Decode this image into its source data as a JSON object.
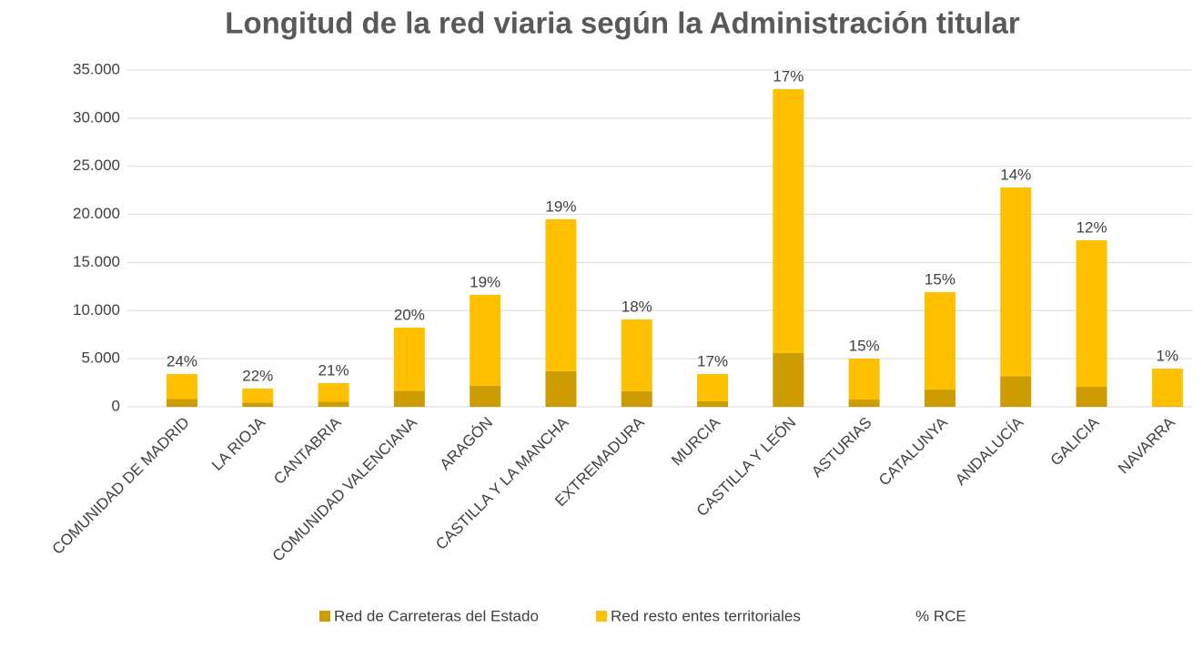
{
  "chart_data": {
    "type": "stacked_bar",
    "title": "Longitud de la red viaria según la Administración titular",
    "categories": [
      "COMUNIDAD DE MADRID",
      "LA RIOJA",
      "CANTABRIA",
      "COMUNIDAD VALENCIANA",
      "ARAGÓN",
      "CASTILLA Y LA MANCHA",
      "EXTREMADURA",
      "MURCIA",
      "CASTILLA Y LEÓN",
      "ASTURIAS",
      "CATALUNYA",
      "ANDALUCÍA",
      "GALICIA",
      "NAVARRA"
    ],
    "series": [
      {
        "name": "Red de Carreteras del Estado",
        "color": "#cc9c00",
        "values": [
          800,
          420,
          520,
          1650,
          2210,
          3700,
          1630,
          580,
          5610,
          750,
          1790,
          3190,
          2080,
          40
        ]
      },
      {
        "name": "Red resto entes territoriales",
        "color": "#ffc000",
        "values": [
          2600,
          1480,
          1940,
          6580,
          9430,
          15790,
          7450,
          2820,
          27410,
          4260,
          10130,
          19610,
          15230,
          3930
        ]
      },
      {
        "name": "% RCE",
        "values": [
          24,
          22,
          21,
          20,
          19,
          19,
          18,
          17,
          17,
          15,
          15,
          14,
          12,
          1
        ],
        "value_labels": [
          "24%",
          "22%",
          "21%",
          "20%",
          "19%",
          "19%",
          "18%",
          "17%",
          "17%",
          "15%",
          "15%",
          "14%",
          "12%",
          "1%"
        ]
      }
    ],
    "ylim": [
      0,
      35000
    ],
    "yticks": [
      0,
      {
        "value": 5000,
        "label": "5.000"
      },
      {
        "value": 10000,
        "label": "10.000"
      },
      {
        "value": 15000,
        "label": "15.000"
      },
      {
        "value": 20000,
        "label": "20.000"
      },
      {
        "value": 25000,
        "label": "25.000"
      },
      {
        "value": 30000,
        "label": "30.000"
      },
      {
        "value": 35000,
        "label": "35.000"
      }
    ],
    "grid": true,
    "legend": "bottom"
  }
}
